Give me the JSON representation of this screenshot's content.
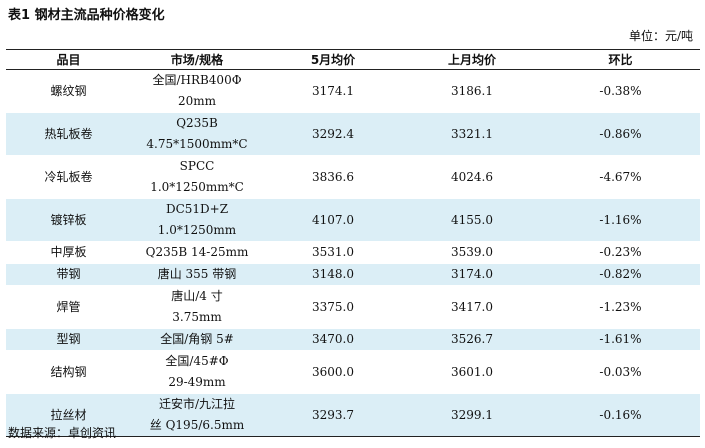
{
  "title": "表1 钢材主流品种价格变化",
  "unit": "单位：元/吨",
  "columns": [
    "品目",
    "市场/规格",
    "5月均价",
    "上月均价",
    "环比"
  ],
  "rows": [
    {
      "item": "螺纹钢",
      "spec": [
        "全国/HRB400Φ",
        "20mm"
      ],
      "may": "3174.1",
      "prev": "3186.1",
      "mom": "-0.38%"
    },
    {
      "item": "热轧板卷",
      "spec": [
        "Q235B",
        "4.75*1500mm*C"
      ],
      "may": "3292.4",
      "prev": "3321.1",
      "mom": "-0.86%"
    },
    {
      "item": "冷轧板卷",
      "spec": [
        "SPCC",
        "1.0*1250mm*C"
      ],
      "may": "3836.6",
      "prev": "4024.6",
      "mom": "-4.67%"
    },
    {
      "item": "镀锌板",
      "spec": [
        "DC51D+Z",
        "1.0*1250mm"
      ],
      "may": "4107.0",
      "prev": "4155.0",
      "mom": "-1.16%"
    },
    {
      "item": "中厚板",
      "spec": [
        "Q235B 14-25mm"
      ],
      "may": "3531.0",
      "prev": "3539.0",
      "mom": "-0.23%"
    },
    {
      "item": "带钢",
      "spec": [
        "唐山 355 带钢"
      ],
      "may": "3148.0",
      "prev": "3174.0",
      "mom": "-0.82%"
    },
    {
      "item": "焊管",
      "spec": [
        "唐山/4 寸",
        "3.75mm"
      ],
      "may": "3375.0",
      "prev": "3417.0",
      "mom": "-1.23%"
    },
    {
      "item": "型钢",
      "spec": [
        "全国/角钢 5#"
      ],
      "may": "3470.0",
      "prev": "3526.7",
      "mom": "-1.61%"
    },
    {
      "item": "结构钢",
      "spec": [
        "全国/45#Φ",
        "29-49mm"
      ],
      "may": "3600.0",
      "prev": "3601.0",
      "mom": "-0.03%"
    },
    {
      "item": "拉丝材",
      "spec": [
        "迁安市/九江拉",
        "丝 Q195/6.5mm"
      ],
      "may": "3293.7",
      "prev": "3299.1",
      "mom": "-0.16%"
    }
  ],
  "source": "数据来源：卓创资讯",
  "colors": {
    "row_shade": "#dbeef6",
    "rule": "#222222"
  }
}
